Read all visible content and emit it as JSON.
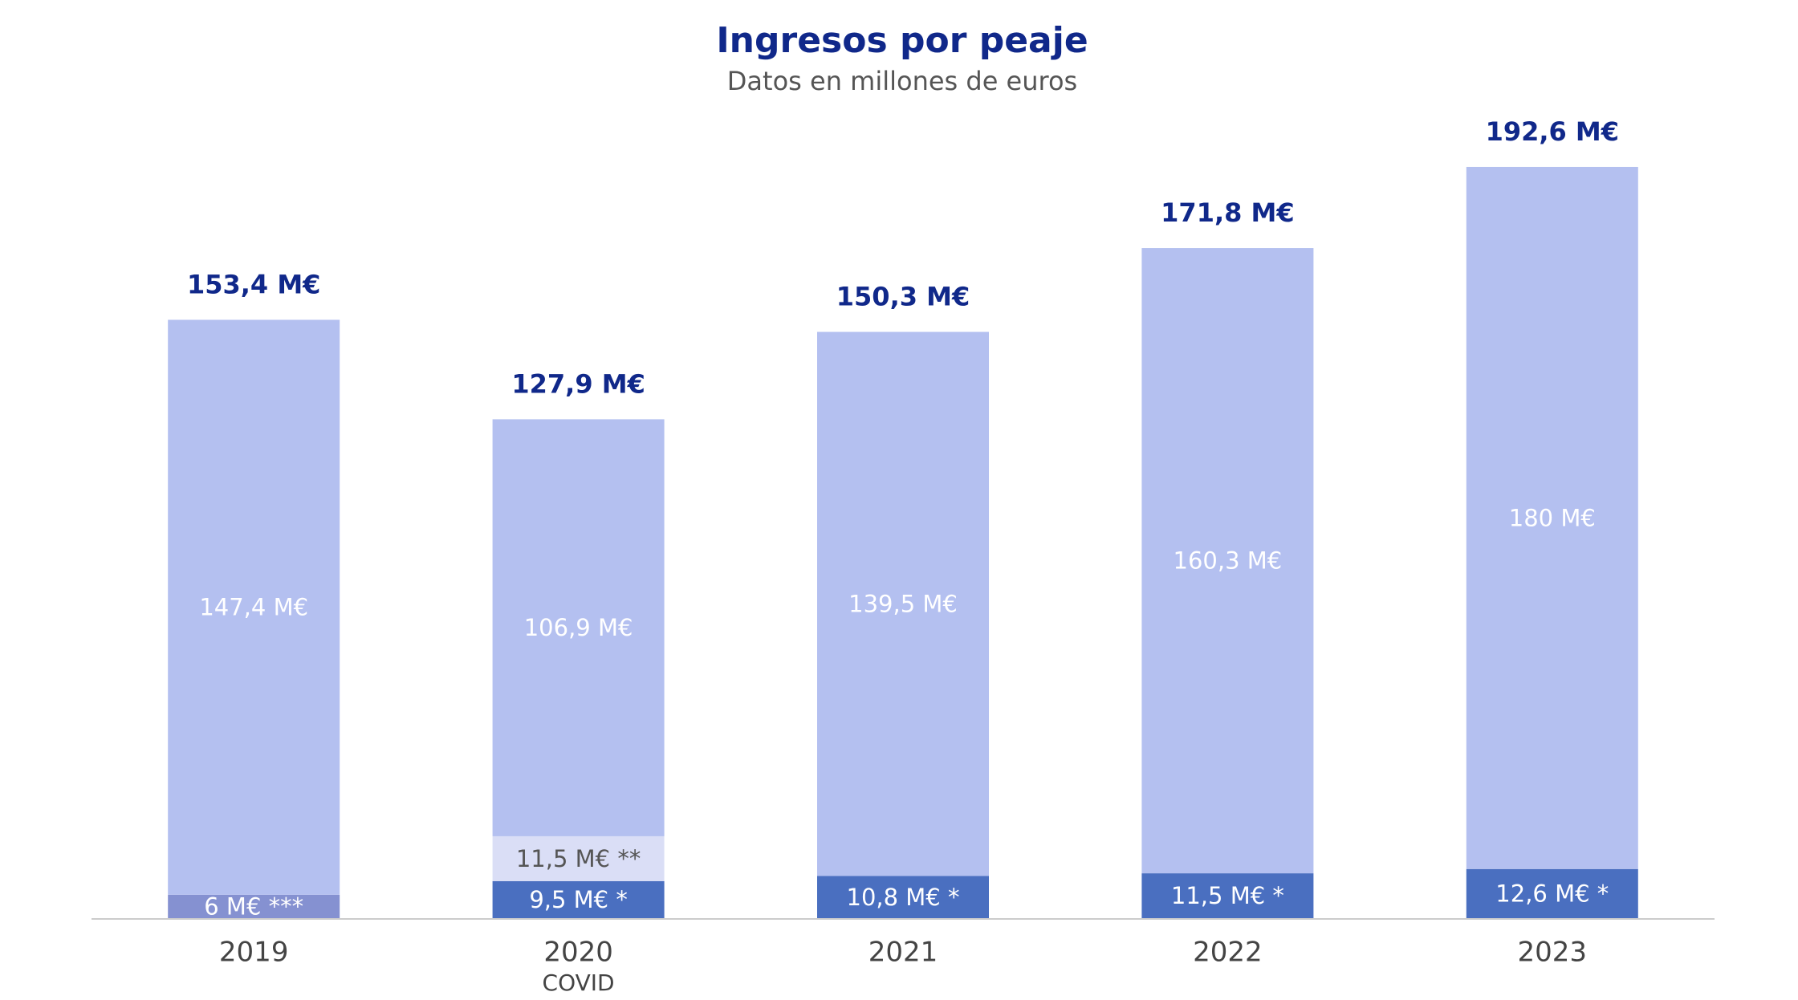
{
  "chart_data": {
    "type": "stacked-bar",
    "title": "Ingresos por peaje",
    "subtitle": "Datos en millones de euros",
    "categories": [
      "2019",
      "2020",
      "2021",
      "2022",
      "2023"
    ],
    "category_notes": [
      null,
      "COVID",
      null,
      null,
      null
    ],
    "series": [
      {
        "color": "#4a6fc0",
        "values": [
          null,
          9.5,
          10.8,
          11.5,
          12.6
        ],
        "value_labels": [
          null,
          "9,5 M€ *",
          "10,8 M€ *",
          "11,5 M€ *",
          "12,6 M€ *"
        ]
      },
      {
        "color": "#8591d1",
        "values": [
          6,
          null,
          null,
          null,
          null
        ],
        "value_labels": [
          "6 M€ ***",
          null,
          null,
          null,
          null
        ]
      },
      {
        "color": "#dadef6",
        "values": [
          null,
          11.5,
          null,
          null,
          null
        ],
        "value_labels": [
          null,
          "11,5 M€ **",
          null,
          null,
          null
        ]
      },
      {
        "color": "#b4c0f0",
        "values": [
          147.4,
          106.9,
          139.5,
          160.3,
          180
        ],
        "value_labels": [
          "147,4 M€",
          "106,9 M€",
          "139,5 M€",
          "160,3 M€",
          "180 M€"
        ]
      }
    ],
    "totals": {
      "values": [
        153.4,
        127.9,
        150.3,
        171.8,
        192.6
      ],
      "value_labels": [
        "153,4 M€",
        "127,9 M€",
        "150,3 M€",
        "171,8 M€",
        "192,6 M€"
      ]
    }
  }
}
